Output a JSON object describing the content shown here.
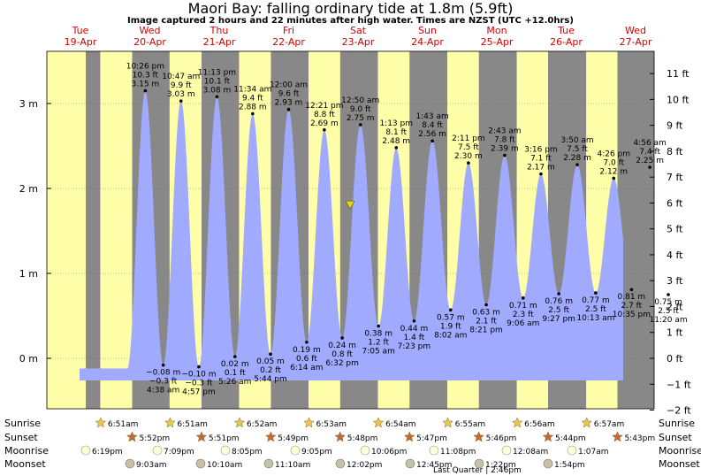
{
  "title": "Maori Bay: falling  ordinary tide at 1.8m (5.9ft)",
  "subtitle": "Image captured 2 hours and 22 minutes after high water. Times are NZST (UTC +12.0hrs)",
  "chart_data": {
    "type": "area",
    "days": [
      {
        "dow": "Tue",
        "date": "19-Apr"
      },
      {
        "dow": "Wed",
        "date": "20-Apr"
      },
      {
        "dow": "Thu",
        "date": "21-Apr"
      },
      {
        "dow": "Fri",
        "date": "22-Apr"
      },
      {
        "dow": "Sat",
        "date": "23-Apr"
      },
      {
        "dow": "Sun",
        "date": "24-Apr"
      },
      {
        "dow": "Mon",
        "date": "25-Apr"
      },
      {
        "dow": "Tue",
        "date": "26-Apr"
      },
      {
        "dow": "Wed",
        "date": "27-Apr"
      }
    ],
    "y_m_ticks": [
      "0 m",
      "1 m",
      "2 m",
      "3 m"
    ],
    "y_ft_ticks": [
      "−2 ft",
      "−1 ft",
      "0 ft",
      "1 ft",
      "2 ft",
      "3 ft",
      "4 ft",
      "5 ft",
      "6 ft",
      "7 ft",
      "8 ft",
      "9 ft",
      "10 ft",
      "11 ft"
    ],
    "ylim_m": [
      -0.62,
      3.62
    ],
    "current": {
      "height_m": 1.8,
      "time": "Sat 23-Apr ~15:35"
    },
    "extremes": [
      {
        "type": "high",
        "time": "10:26 pm",
        "ft": "10.3 ft",
        "m": "3.15 m",
        "value": 3.15
      },
      {
        "type": "low",
        "time": "4:38 am",
        "ft": "−0.3 ft",
        "m": "−0.08 m",
        "value": -0.08
      },
      {
        "type": "high",
        "time": "10:47 am",
        "ft": "9.9 ft",
        "m": "3.03 m",
        "value": 3.03
      },
      {
        "type": "low",
        "time": "4:57 pm",
        "ft": "−0.3 ft",
        "m": "−0.10 m",
        "value": -0.1
      },
      {
        "type": "high",
        "time": "11:13 pm",
        "ft": "10.1 ft",
        "m": "3.08 m",
        "value": 3.08
      },
      {
        "type": "low",
        "time": "5:26 am",
        "ft": "0.1 ft",
        "m": "0.02 m",
        "value": 0.02
      },
      {
        "type": "high",
        "time": "11:34 am",
        "ft": "9.4 ft",
        "m": "2.88 m",
        "value": 2.88
      },
      {
        "type": "low",
        "time": "5:44 pm",
        "ft": "0.2 ft",
        "m": "0.05 m",
        "value": 0.05
      },
      {
        "type": "high",
        "time": "12:00 am",
        "ft": "9.6 ft",
        "m": "2.93 m",
        "value": 2.93
      },
      {
        "type": "low",
        "time": "6:14 am",
        "ft": "0.6 ft",
        "m": "0.19 m",
        "value": 0.19
      },
      {
        "type": "high",
        "time": "12:21 pm",
        "ft": "8.8 ft",
        "m": "2.69 m",
        "value": 2.69
      },
      {
        "type": "low",
        "time": "6:32 pm",
        "ft": "0.8 ft",
        "m": "0.24 m",
        "value": 0.24
      },
      {
        "type": "high",
        "time": "12:50 am",
        "ft": "9.0 ft",
        "m": "2.75 m",
        "value": 2.75
      },
      {
        "type": "low",
        "time": "7:05 am",
        "ft": "1.2 ft",
        "m": "0.38 m",
        "value": 0.38
      },
      {
        "type": "high",
        "time": "1:13 pm",
        "ft": "8.1 ft",
        "m": "2.48 m",
        "value": 2.48
      },
      {
        "type": "low",
        "time": "7:23 pm",
        "ft": "1.4 ft",
        "m": "0.44 m",
        "value": 0.44
      },
      {
        "type": "high",
        "time": "1:43 am",
        "ft": "8.4 ft",
        "m": "2.56 m",
        "value": 2.56
      },
      {
        "type": "low",
        "time": "8:02 am",
        "ft": "1.9 ft",
        "m": "0.57 m",
        "value": 0.57
      },
      {
        "type": "high",
        "time": "2:11 pm",
        "ft": "7.5 ft",
        "m": "2.30 m",
        "value": 2.3
      },
      {
        "type": "low",
        "time": "8:21 pm",
        "ft": "2.1 ft",
        "m": "0.63 m",
        "value": 0.63
      },
      {
        "type": "high",
        "time": "2:43 am",
        "ft": "7.8 ft",
        "m": "2.39 m",
        "value": 2.39
      },
      {
        "type": "low",
        "time": "9:06 am",
        "ft": "2.3 ft",
        "m": "0.71 m",
        "value": 0.71
      },
      {
        "type": "high",
        "time": "3:16 pm",
        "ft": "7.1 ft",
        "m": "2.17 m",
        "value": 2.17
      },
      {
        "type": "low",
        "time": "9:27 pm",
        "ft": "2.5 ft",
        "m": "0.76 m",
        "value": 0.76
      },
      {
        "type": "high",
        "time": "3:50 am",
        "ft": "7.5 ft",
        "m": "2.28 m",
        "value": 2.28
      },
      {
        "type": "low",
        "time": "10:13 am",
        "ft": "2.5 ft",
        "m": "0.77 m",
        "value": 0.77
      },
      {
        "type": "high",
        "time": "4:26 pm",
        "ft": "7.0 ft",
        "m": "2.12 m",
        "value": 2.12
      },
      {
        "type": "low",
        "time": "10:35 pm",
        "ft": "2.7 ft",
        "m": "0.81 m",
        "value": 0.81
      },
      {
        "type": "high",
        "time": "4:56 am",
        "ft": "7.4 ft",
        "m": "2.25 m",
        "value": 2.25
      },
      {
        "type": "low",
        "time": "11:20 am",
        "ft": "2.5 ft",
        "m": "0.75 m",
        "value": 0.75
      }
    ],
    "series_end_value": 1.78,
    "rows": {
      "sunrise_label": "Sunrise",
      "sunset_label": "Sunset",
      "moonrise_label": "Moonrise",
      "moonset_label": "Moonset",
      "sunrise": [
        "6:51am",
        "6:51am",
        "6:52am",
        "6:53am",
        "6:54am",
        "6:55am",
        "6:56am",
        "6:57am"
      ],
      "sunset": [
        "5:52pm",
        "5:51pm",
        "5:49pm",
        "5:48pm",
        "5:47pm",
        "5:46pm",
        "5:44pm",
        "5:43pm"
      ],
      "moonrise": [
        "6:19pm",
        "7:09pm",
        "8:05pm",
        "9:05pm",
        "10:06pm",
        "11:08pm",
        "12:08am",
        "1:07am"
      ],
      "moonset": [
        "9:03am",
        "10:10am",
        "11:10am",
        "12:02pm",
        "12:45pm",
        "1:22pm",
        "1:54pm"
      ],
      "phase_note": "Last Quarter | 2:46pm"
    },
    "colors": {
      "water": "#a0aaff",
      "day_bg": "#ffffaa",
      "night_bg": "#888888",
      "outer_bg": "#ffffcc",
      "sun_marker": "#e8c84c",
      "sunset_marker": "#c06a3a",
      "moonrise_fill": "#ffffd8",
      "moonset_fill": "#c8c0a8",
      "current_marker": "#e8d800",
      "day_label": "#d40000"
    }
  }
}
